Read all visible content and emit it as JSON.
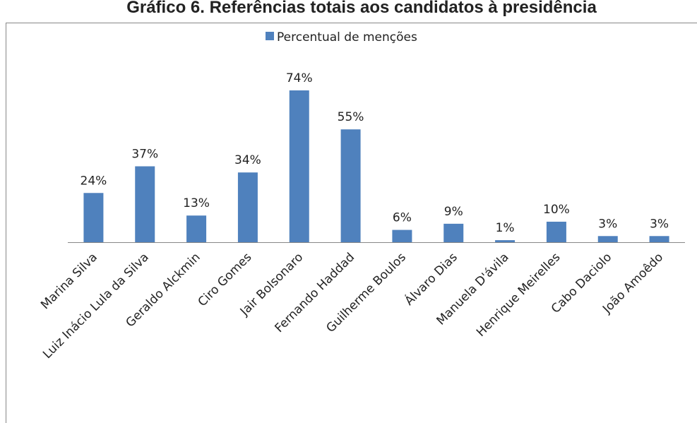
{
  "chart_data": {
    "type": "bar",
    "title": "Gráfico 6. Referências totais aos candidatos à presidência",
    "categories": [
      "Marina Silva",
      "Luiz Inácio Lula da Silva",
      "Geraldo Alckmin",
      "Ciro Gomes",
      "Jair Bolsonaro",
      "Fernando Haddad",
      "Guilherme Boulos",
      "Álvaro Dias",
      "Manuela D'ávila",
      "Henrique Meirelles",
      "Cabo Daciolo",
      "João Amoêdo"
    ],
    "series": [
      {
        "name": "Percentual de menções",
        "color": "#4f81bd",
        "values": [
          24,
          37,
          13,
          34,
          74,
          55,
          6,
          9,
          1,
          10,
          3,
          3
        ],
        "value_labels": [
          "24%",
          "37%",
          "13%",
          "34%",
          "74%",
          "55%",
          "6%",
          "9%",
          "1%",
          "10%",
          "3%",
          "3%"
        ]
      }
    ],
    "legend": "top"
  }
}
